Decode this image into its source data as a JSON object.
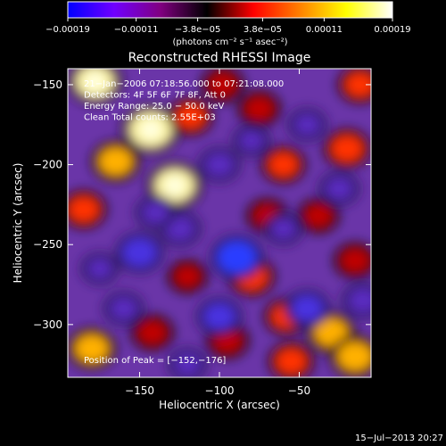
{
  "chart_data": {
    "type": "heatmap",
    "title": "Reconstructed RHESSI Image",
    "xlabel": "Heliocentric X (arcsec)",
    "ylabel": "Heliocentric Y (arcsec)",
    "xlim": [
      -195,
      -5
    ],
    "ylim": [
      -333,
      -140
    ],
    "x_ticks": [
      -150,
      -100,
      -50
    ],
    "x_tick_labels": [
      "−150",
      "−100",
      "−50"
    ],
    "y_ticks": [
      -150,
      -200,
      -250,
      -300
    ],
    "y_tick_labels": [
      "−150",
      "−200",
      "−250",
      "−300"
    ],
    "colorbar": {
      "range": [
        -0.00019,
        0.00019
      ],
      "ticks": [
        -0.00019,
        -0.00011,
        -3.8e-05,
        3.8e-05,
        0.00011,
        0.00019
      ],
      "tick_labels": [
        "−0.00019",
        "−0.00011",
        "−3.8e−05",
        "3.8e−05",
        "0.00011",
        "0.00019"
      ],
      "units": "(photons cm⁻² s⁻¹ asec⁻²)",
      "colors": [
        "#0000ff",
        "#7000ff",
        "#800080",
        "#000000",
        "#ff0000",
        "#ff8000",
        "#ffff00",
        "#ffffff"
      ]
    },
    "annotations": [
      "21−Jan−2006 07:18:56.000 to 07:21:08.000",
      "Detectors: 4F 5F 6F 7F 8F, Att 0",
      "Energy Range: 25.0 − 50.0 keV",
      "Clean      Total counts: 2.55E+03"
    ],
    "peak_text": "Position of Peak = [−152,−176]",
    "peak_position": [
      -152,
      -176
    ],
    "sources": [
      {
        "x": -143,
        "y": -178,
        "value": 0.00019
      },
      {
        "x": -178,
        "y": -148,
        "value": 0.00016
      },
      {
        "x": -128,
        "y": -213,
        "value": 0.00017
      },
      {
        "x": -165,
        "y": -198,
        "value": 0.00012
      },
      {
        "x": -185,
        "y": -228,
        "value": 0.0001
      },
      {
        "x": -180,
        "y": -315,
        "value": 0.00012
      },
      {
        "x": -142,
        "y": -305,
        "value": 8e-05
      },
      {
        "x": -118,
        "y": -170,
        "value": 9e-05
      },
      {
        "x": -98,
        "y": -150,
        "value": 8e-05
      },
      {
        "x": -75,
        "y": -165,
        "value": 8e-05
      },
      {
        "x": -60,
        "y": -200,
        "value": 9e-05
      },
      {
        "x": -20,
        "y": -190,
        "value": 0.00011
      },
      {
        "x": -12,
        "y": -150,
        "value": 9e-05
      },
      {
        "x": -15,
        "y": -260,
        "value": 8e-05
      },
      {
        "x": -38,
        "y": -232,
        "value": 7e-05
      },
      {
        "x": -70,
        "y": -232,
        "value": 7e-05
      },
      {
        "x": -80,
        "y": -270,
        "value": 0.00011
      },
      {
        "x": -58,
        "y": -295,
        "value": 9e-05
      },
      {
        "x": -30,
        "y": -305,
        "value": 0.00012
      },
      {
        "x": -15,
        "y": -320,
        "value": 0.00013
      },
      {
        "x": -55,
        "y": -323,
        "value": 0.0001
      },
      {
        "x": -95,
        "y": -310,
        "value": 8e-05
      },
      {
        "x": -120,
        "y": -270,
        "value": 6e-05
      },
      {
        "x": -100,
        "y": -295,
        "value": -0.0001
      },
      {
        "x": -89,
        "y": -258,
        "value": -0.00016
      },
      {
        "x": -150,
        "y": -255,
        "value": -0.00012
      },
      {
        "x": -175,
        "y": -265,
        "value": -4e-05
      },
      {
        "x": -125,
        "y": -240,
        "value": -8e-05
      },
      {
        "x": -45,
        "y": -290,
        "value": -0.0001
      },
      {
        "x": -60,
        "y": -240,
        "value": -5e-05
      },
      {
        "x": -25,
        "y": -215,
        "value": -6e-05
      },
      {
        "x": -100,
        "y": -200,
        "value": -7e-05
      },
      {
        "x": -45,
        "y": -175,
        "value": -5e-05
      },
      {
        "x": -10,
        "y": -285,
        "value": -8e-05
      },
      {
        "x": -160,
        "y": -290,
        "value": -6e-05
      },
      {
        "x": -140,
        "y": -230,
        "value": -6e-05
      },
      {
        "x": -80,
        "y": -185,
        "value": -4e-05
      },
      {
        "x": -120,
        "y": -325,
        "value": -5e-05
      }
    ]
  },
  "timestamp": "15−Jul−2013 20:27"
}
